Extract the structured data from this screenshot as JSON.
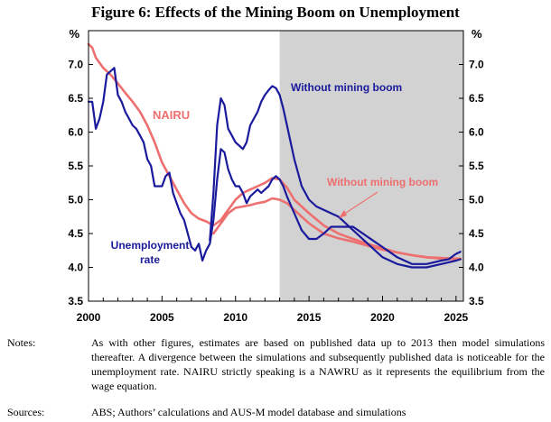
{
  "chart_data": {
    "type": "line",
    "title": "Figure 6: Effects of the Mining Boom on Unemployment",
    "ylabel_left": "%",
    "ylabel_right": "%",
    "xlim": [
      2000,
      2025.5
    ],
    "ylim": [
      3.5,
      7.5
    ],
    "yticks": [
      "3.5",
      "4.0",
      "4.5",
      "5.0",
      "5.5",
      "6.0",
      "6.5",
      "7.0"
    ],
    "xticks": [
      "2000",
      "2005",
      "2010",
      "2015",
      "2020",
      "2025"
    ],
    "shaded_from": 2013.0,
    "annotations": {
      "without_mining_boom_blue": "Without mining boom",
      "nairu": "NAIRU",
      "without_mining_boom_red": "Without mining boom",
      "unemployment_rate_line1": "Unemployment",
      "unemployment_rate_line2": "rate"
    },
    "series": [
      {
        "name": "Unemployment rate",
        "color": "#1a1a9c",
        "points": [
          [
            2000.0,
            6.45
          ],
          [
            2000.25,
            6.45
          ],
          [
            2000.5,
            6.05
          ],
          [
            2000.75,
            6.2
          ],
          [
            2001.0,
            6.45
          ],
          [
            2001.25,
            6.85
          ],
          [
            2001.5,
            6.9
          ],
          [
            2001.75,
            6.95
          ],
          [
            2002.0,
            6.55
          ],
          [
            2002.25,
            6.45
          ],
          [
            2002.5,
            6.3
          ],
          [
            2002.75,
            6.2
          ],
          [
            2003.0,
            6.1
          ],
          [
            2003.25,
            6.05
          ],
          [
            2003.5,
            5.95
          ],
          [
            2003.75,
            5.85
          ],
          [
            2004.0,
            5.6
          ],
          [
            2004.25,
            5.5
          ],
          [
            2004.5,
            5.2
          ],
          [
            2004.75,
            5.2
          ],
          [
            2005.0,
            5.2
          ],
          [
            2005.25,
            5.35
          ],
          [
            2005.5,
            5.4
          ],
          [
            2005.75,
            5.1
          ],
          [
            2006.0,
            4.95
          ],
          [
            2006.25,
            4.8
          ],
          [
            2006.5,
            4.7
          ],
          [
            2006.75,
            4.5
          ],
          [
            2007.0,
            4.3
          ],
          [
            2007.25,
            4.25
          ],
          [
            2007.5,
            4.35
          ],
          [
            2007.75,
            4.1
          ],
          [
            2008.0,
            4.25
          ],
          [
            2008.25,
            4.35
          ],
          [
            2008.5,
            4.7
          ],
          [
            2008.75,
            5.3
          ],
          [
            2009.0,
            5.75
          ],
          [
            2009.25,
            5.7
          ],
          [
            2009.5,
            5.45
          ],
          [
            2009.75,
            5.3
          ],
          [
            2010.0,
            5.2
          ],
          [
            2010.25,
            5.2
          ],
          [
            2010.5,
            5.1
          ],
          [
            2010.75,
            4.95
          ],
          [
            2011.0,
            5.05
          ],
          [
            2011.25,
            5.1
          ],
          [
            2011.5,
            5.15
          ],
          [
            2011.75,
            5.1
          ],
          [
            2012.0,
            5.15
          ],
          [
            2012.25,
            5.2
          ],
          [
            2012.5,
            5.3
          ],
          [
            2012.75,
            5.35
          ],
          [
            2013.0,
            5.3
          ],
          [
            2013.25,
            5.2
          ],
          [
            2013.5,
            5.05
          ],
          [
            2014.0,
            4.8
          ],
          [
            2014.5,
            4.55
          ],
          [
            2015.0,
            4.42
          ],
          [
            2015.5,
            4.42
          ],
          [
            2016.0,
            4.5
          ],
          [
            2016.5,
            4.6
          ],
          [
            2017.0,
            4.6
          ],
          [
            2018.0,
            4.6
          ],
          [
            2019.0,
            4.45
          ],
          [
            2020.0,
            4.3
          ],
          [
            2021.0,
            4.15
          ],
          [
            2022.0,
            4.05
          ],
          [
            2023.0,
            4.05
          ],
          [
            2024.0,
            4.1
          ],
          [
            2024.5,
            4.12
          ],
          [
            2025.0,
            4.2
          ],
          [
            2025.3,
            4.23
          ]
        ]
      },
      {
        "name": "Unemployment rate without mining boom",
        "color": "#1a1a9c",
        "points": [
          [
            2008.25,
            4.4
          ],
          [
            2008.5,
            5.1
          ],
          [
            2008.75,
            6.1
          ],
          [
            2009.0,
            6.5
          ],
          [
            2009.25,
            6.4
          ],
          [
            2009.5,
            6.05
          ],
          [
            2009.75,
            5.95
          ],
          [
            2010.0,
            5.85
          ],
          [
            2010.25,
            5.8
          ],
          [
            2010.5,
            5.75
          ],
          [
            2010.75,
            5.85
          ],
          [
            2011.0,
            6.1
          ],
          [
            2011.25,
            6.2
          ],
          [
            2011.5,
            6.3
          ],
          [
            2011.75,
            6.45
          ],
          [
            2012.0,
            6.55
          ],
          [
            2012.25,
            6.62
          ],
          [
            2012.5,
            6.68
          ],
          [
            2012.75,
            6.65
          ],
          [
            2013.0,
            6.55
          ],
          [
            2013.25,
            6.35
          ],
          [
            2013.5,
            6.1
          ],
          [
            2014.0,
            5.6
          ],
          [
            2014.5,
            5.2
          ],
          [
            2015.0,
            5.0
          ],
          [
            2015.5,
            4.9
          ],
          [
            2016.0,
            4.85
          ],
          [
            2016.5,
            4.8
          ],
          [
            2017.0,
            4.75
          ],
          [
            2018.0,
            4.55
          ],
          [
            2019.0,
            4.35
          ],
          [
            2020.0,
            4.15
          ],
          [
            2021.0,
            4.05
          ],
          [
            2022.0,
            4.0
          ],
          [
            2023.0,
            4.0
          ],
          [
            2024.0,
            4.05
          ],
          [
            2025.0,
            4.1
          ],
          [
            2025.3,
            4.12
          ]
        ]
      },
      {
        "name": "NAIRU",
        "color": "#ee6f6f",
        "points": [
          [
            2000.0,
            7.3
          ],
          [
            2000.25,
            7.25
          ],
          [
            2000.5,
            7.1
          ],
          [
            2001.0,
            6.95
          ],
          [
            2001.5,
            6.85
          ],
          [
            2002.0,
            6.72
          ],
          [
            2002.5,
            6.58
          ],
          [
            2003.0,
            6.45
          ],
          [
            2003.5,
            6.3
          ],
          [
            2004.0,
            6.1
          ],
          [
            2004.5,
            5.85
          ],
          [
            2005.0,
            5.55
          ],
          [
            2005.5,
            5.35
          ],
          [
            2006.0,
            5.15
          ],
          [
            2006.5,
            4.95
          ],
          [
            2007.0,
            4.8
          ],
          [
            2007.5,
            4.72
          ],
          [
            2008.0,
            4.68
          ],
          [
            2008.5,
            4.62
          ],
          [
            2009.0,
            4.7
          ],
          [
            2009.5,
            4.85
          ],
          [
            2010.0,
            5.0
          ],
          [
            2010.5,
            5.1
          ],
          [
            2011.0,
            5.15
          ],
          [
            2011.5,
            5.2
          ],
          [
            2012.0,
            5.25
          ],
          [
            2012.5,
            5.32
          ],
          [
            2013.0,
            5.3
          ],
          [
            2013.5,
            5.18
          ],
          [
            2014.0,
            5.0
          ],
          [
            2015.0,
            4.8
          ],
          [
            2016.0,
            4.62
          ],
          [
            2017.0,
            4.5
          ],
          [
            2018.0,
            4.42
          ],
          [
            2019.0,
            4.35
          ],
          [
            2020.0,
            4.28
          ],
          [
            2021.0,
            4.22
          ],
          [
            2022.0,
            4.18
          ],
          [
            2023.0,
            4.15
          ],
          [
            2024.0,
            4.14
          ],
          [
            2025.0,
            4.13
          ],
          [
            2025.3,
            4.13
          ]
        ]
      },
      {
        "name": "NAIRU without mining boom",
        "color": "#ee6f6f",
        "points": [
          [
            2008.5,
            4.5
          ],
          [
            2009.0,
            4.65
          ],
          [
            2009.5,
            4.8
          ],
          [
            2010.0,
            4.88
          ],
          [
            2010.5,
            4.9
          ],
          [
            2011.0,
            4.92
          ],
          [
            2011.5,
            4.95
          ],
          [
            2012.0,
            4.97
          ],
          [
            2012.5,
            5.02
          ],
          [
            2013.0,
            5.0
          ],
          [
            2013.5,
            4.95
          ],
          [
            2014.0,
            4.85
          ],
          [
            2015.0,
            4.65
          ],
          [
            2016.0,
            4.5
          ],
          [
            2017.0,
            4.43
          ],
          [
            2018.0,
            4.38
          ],
          [
            2019.0,
            4.32
          ],
          [
            2020.0,
            4.26
          ],
          [
            2021.0,
            4.22
          ],
          [
            2022.0,
            4.18
          ],
          [
            2023.0,
            4.15
          ],
          [
            2024.0,
            4.13
          ],
          [
            2025.0,
            4.12
          ],
          [
            2025.3,
            4.12
          ]
        ]
      }
    ]
  },
  "notes_label": "Notes:",
  "notes_text": "As with other figures, estimates are based on published data up to 2013 then model simulations thereafter. A divergence between the simulations and subsequently published data is noticeable for the unemployment rate. NAIRU strictly speaking is a NAWRU as it represents the equilibrium from the wage equation.",
  "sources_label": "Sources:",
  "sources_text": "ABS; Authors’ calculations and AUS-M model database and simulations"
}
